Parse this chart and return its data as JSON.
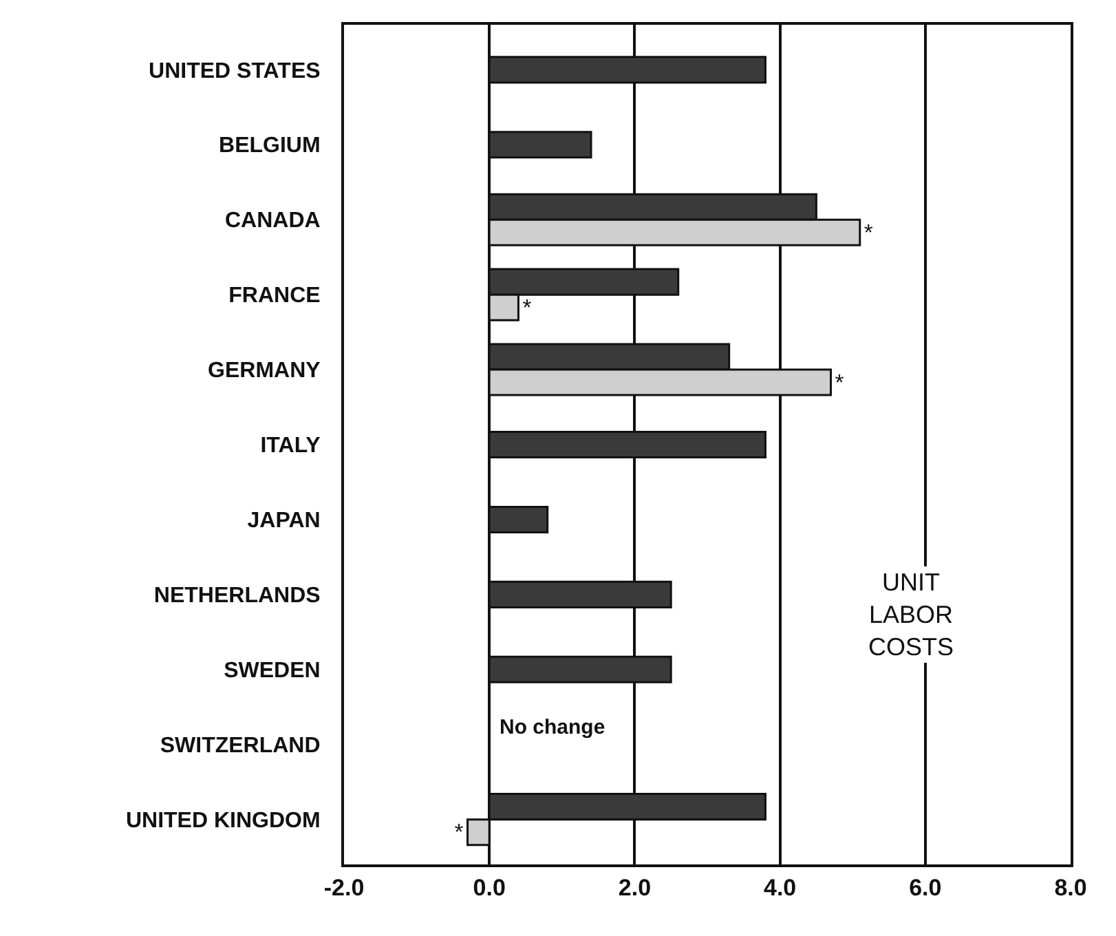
{
  "chart_data": {
    "type": "bar",
    "orientation": "horizontal",
    "categories": [
      "UNITED STATES",
      "BELGIUM",
      "CANADA",
      "FRANCE",
      "GERMANY",
      "ITALY",
      "JAPAN",
      "NETHERLANDS",
      "SWEDEN",
      "SWITZERLAND",
      "UNITED KINGDOM"
    ],
    "series": [
      {
        "color": "#3a3a3a",
        "values": [
          3.8,
          1.4,
          4.5,
          2.6,
          3.3,
          3.8,
          0.8,
          2.5,
          2.5,
          null,
          3.8
        ]
      },
      {
        "color": "#cfcfcf",
        "values": [
          null,
          null,
          5.1,
          0.4,
          4.7,
          null,
          null,
          null,
          null,
          null,
          -0.3
        ],
        "value_labels": [
          null,
          null,
          "*",
          "*",
          "*",
          null,
          null,
          null,
          null,
          null,
          "*"
        ]
      }
    ],
    "xlim": [
      -2.0,
      8.0
    ],
    "xticks": [
      {
        "value": -2,
        "label": "-2.0"
      },
      {
        "value": 0,
        "label": "0.0"
      },
      {
        "value": 2,
        "label": "2.0"
      },
      {
        "value": 4,
        "label": "4.0"
      },
      {
        "value": 6,
        "label": "6.0"
      },
      {
        "value": 8,
        "label": "8.0"
      }
    ],
    "grid": "x",
    "annotations": [
      "No change",
      "UNIT\nLABOR\nCOSTS"
    ]
  }
}
